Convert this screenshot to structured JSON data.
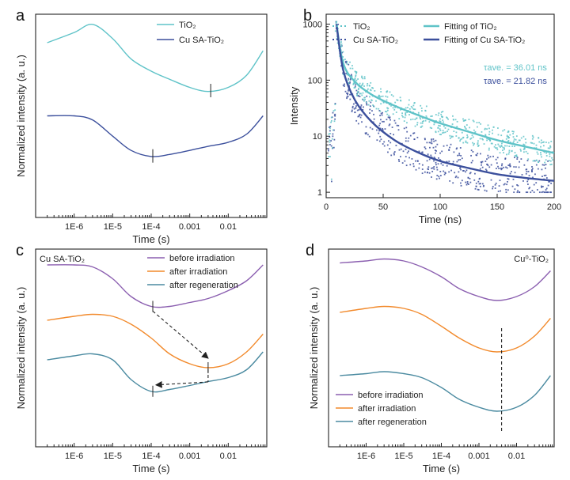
{
  "colors": {
    "tio2": "#5fc3c8",
    "cu_sa_tio2": "#3b4f9c",
    "before_irradiation": "#8b5fb0",
    "after_irradiation": "#f28a2c",
    "after_regeneration": "#4a8aa0"
  },
  "chart_data": [
    {
      "id": "a",
      "panel_label": "a",
      "type": "line",
      "xlabel": "Time (s)",
      "ylabel": "Normalized intensity (a. u.)",
      "x_scale": "log",
      "xlim": [
        "1E-7",
        "0.1"
      ],
      "x_ticks": [
        "1E-6",
        "1E-5",
        "1E-4",
        "0.001",
        "0.01"
      ],
      "y_ticks_shown": false,
      "legend": {
        "position": "top-center",
        "entries": [
          "TiO₂",
          "Cu SA-TiO₂"
        ]
      },
      "series": [
        {
          "name": "TiO₂",
          "x": [
            "2e-7",
            "1e-6",
            "3e-6",
            "1e-5",
            "3e-5",
            "1e-4",
            "3e-4",
            "1e-3",
            "3e-3",
            "1e-2",
            "3e-2",
            "8e-2"
          ],
          "y": [
            0.86,
            0.91,
            0.95,
            0.88,
            0.78,
            0.72,
            0.68,
            0.64,
            0.62,
            0.64,
            0.7,
            0.82
          ]
        },
        {
          "name": "Cu SA-TiO₂",
          "x": [
            "2e-7",
            "1e-6",
            "3e-6",
            "1e-5",
            "3e-5",
            "1e-4",
            "3e-4",
            "1e-3",
            "3e-3",
            "1e-2",
            "3e-2",
            "8e-2"
          ],
          "y": [
            0.5,
            0.5,
            0.48,
            0.4,
            0.33,
            0.3,
            0.31,
            0.33,
            0.35,
            0.37,
            0.41,
            0.5
          ]
        }
      ],
      "markers": [
        {
          "series": "TiO₂",
          "x": "3.5e-3"
        },
        {
          "series": "Cu SA-TiO₂",
          "x": "1.1e-4"
        }
      ]
    },
    {
      "id": "b",
      "panel_label": "b",
      "type": "scatter",
      "xlabel": "Time (ns)",
      "ylabel": "Intensity",
      "x_scale": "linear",
      "y_scale": "log",
      "xlim": [
        0,
        200
      ],
      "ylim": [
        0.8,
        1500
      ],
      "x_ticks": [
        "0",
        "50",
        "100",
        "150",
        "200"
      ],
      "y_ticks": [
        "1",
        "10",
        "100",
        "1000"
      ],
      "legend": {
        "position": "top",
        "entries": [
          "TiO₂",
          "Cu SA-TiO₂",
          "Fitting of TiO₂",
          "Fitting of Cu SA-TiO₂"
        ]
      },
      "series": [
        {
          "name": "Fitting of TiO₂",
          "x": [
            9,
            15,
            25,
            40,
            60,
            80,
            100,
            125,
            150,
            175,
            200
          ],
          "y": [
            1000,
            200,
            95,
            55,
            35,
            24,
            17,
            12,
            8.5,
            6.5,
            5
          ]
        },
        {
          "name": "Fitting of Cu SA-TiO₂",
          "x": [
            9,
            15,
            25,
            40,
            60,
            80,
            100,
            125,
            150,
            175,
            200
          ],
          "y": [
            1000,
            150,
            45,
            18,
            8.5,
            5.2,
            3.6,
            2.7,
            2.1,
            1.8,
            1.6
          ]
        }
      ],
      "annotations": [
        {
          "series": "TiO₂",
          "label": "τave. = 36.01 ns"
        },
        {
          "series": "Cu SA-TiO₂",
          "label": "τave. = 21.82 ns"
        }
      ]
    },
    {
      "id": "c",
      "panel_label": "c",
      "sample_label": "Cu SA-TiO₂",
      "type": "line",
      "xlabel": "Time (s)",
      "ylabel": "Normalized intensity (a. u.)",
      "x_scale": "log",
      "xlim": [
        "1E-7",
        "0.1"
      ],
      "x_ticks": [
        "1E-6",
        "1E-5",
        "1E-4",
        "0.001",
        "0.01"
      ],
      "y_ticks_shown": false,
      "legend": {
        "position": "top-right",
        "entries": [
          "before irradiation",
          "after irradiation",
          "after regeneration"
        ]
      },
      "series": [
        {
          "name": "before irradiation",
          "x": [
            "2e-7",
            "1e-6",
            "3e-6",
            "1e-5",
            "3e-5",
            "1e-4",
            "3e-4",
            "1e-3",
            "3e-3",
            "1e-2",
            "3e-2",
            "8e-2"
          ],
          "y": [
            0.92,
            0.92,
            0.91,
            0.85,
            0.76,
            0.71,
            0.71,
            0.73,
            0.75,
            0.79,
            0.84,
            0.92
          ]
        },
        {
          "name": "after irradiation",
          "x": [
            "2e-7",
            "1e-6",
            "3e-6",
            "1e-5",
            "3e-5",
            "1e-4",
            "3e-4",
            "1e-3",
            "3e-3",
            "1e-2",
            "3e-2",
            "8e-2"
          ],
          "y": [
            0.64,
            0.66,
            0.67,
            0.66,
            0.62,
            0.55,
            0.47,
            0.42,
            0.4,
            0.42,
            0.48,
            0.57
          ]
        },
        {
          "name": "after regeneration",
          "x": [
            "2e-7",
            "1e-6",
            "3e-6",
            "1e-5",
            "3e-5",
            "1e-4",
            "3e-4",
            "1e-3",
            "3e-3",
            "1e-2",
            "3e-2",
            "8e-2"
          ],
          "y": [
            0.44,
            0.46,
            0.47,
            0.44,
            0.34,
            0.28,
            0.29,
            0.31,
            0.33,
            0.35,
            0.39,
            0.48
          ]
        }
      ],
      "markers": [
        {
          "series": "before irradiation",
          "x": "1.1e-4"
        },
        {
          "series": "after irradiation",
          "x": "3e-3"
        },
        {
          "series": "after regeneration",
          "x": "1.1e-4"
        }
      ]
    },
    {
      "id": "d",
      "panel_label": "d",
      "sample_label": "Cu⁰-TiO₂",
      "type": "line",
      "xlabel": "Time (s)",
      "ylabel": "Normalized intensity (a. u.)",
      "x_scale": "log",
      "xlim": [
        "1E-7",
        "0.1"
      ],
      "x_ticks": [
        "1E-6",
        "1E-5",
        "1E-4",
        "0.001",
        "0.01"
      ],
      "y_ticks_shown": false,
      "legend": {
        "position": "bottom-left",
        "entries": [
          "before irradiation",
          "after irradiation",
          "after regeneration"
        ]
      },
      "series": [
        {
          "name": "before irradiation",
          "x": [
            "2e-7",
            "1e-6",
            "3e-6",
            "1e-5",
            "3e-5",
            "1e-4",
            "3e-4",
            "1e-3",
            "3e-3",
            "1e-2",
            "3e-2",
            "8e-2"
          ],
          "y": [
            0.93,
            0.94,
            0.95,
            0.94,
            0.91,
            0.86,
            0.8,
            0.76,
            0.74,
            0.76,
            0.81,
            0.89
          ]
        },
        {
          "name": "after irradiation",
          "x": [
            "2e-7",
            "1e-6",
            "3e-6",
            "1e-5",
            "3e-5",
            "1e-4",
            "3e-4",
            "1e-3",
            "3e-3",
            "1e-2",
            "3e-2",
            "8e-2"
          ],
          "y": [
            0.68,
            0.7,
            0.71,
            0.7,
            0.67,
            0.61,
            0.55,
            0.5,
            0.48,
            0.5,
            0.56,
            0.65
          ]
        },
        {
          "name": "after regeneration",
          "x": [
            "2e-7",
            "1e-6",
            "3e-6",
            "1e-5",
            "3e-5",
            "1e-4",
            "3e-4",
            "1e-3",
            "3e-3",
            "1e-2",
            "3e-2",
            "8e-2"
          ],
          "y": [
            0.36,
            0.37,
            0.38,
            0.37,
            0.35,
            0.3,
            0.24,
            0.2,
            0.18,
            0.2,
            0.26,
            0.36
          ]
        }
      ],
      "vertical_marker_x": "4e-3"
    }
  ]
}
